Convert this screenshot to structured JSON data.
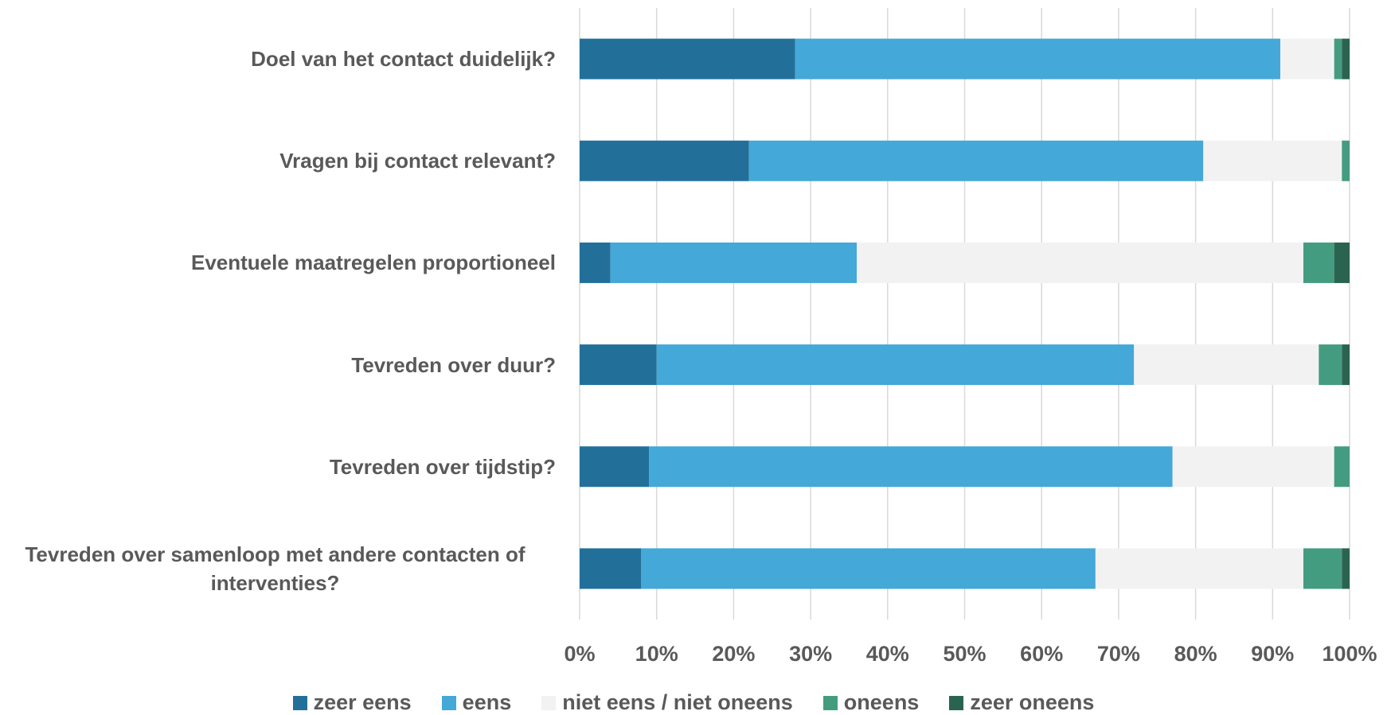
{
  "chart_data": {
    "type": "stacked_barh",
    "categories": [
      "Doel van het contact duidelijk?",
      "Vragen bij contact relevant?",
      "Eventuele maatregelen proportioneel",
      "Tevreden over duur?",
      "Tevreden over tijdstip?",
      "Tevreden over samenloop met andere contacten of interventies?"
    ],
    "series": [
      {
        "name": "zeer eens",
        "color": "#22709a",
        "values": [
          28,
          22,
          4,
          10,
          9,
          8
        ]
      },
      {
        "name": "eens",
        "color": "#44a8d8",
        "values": [
          63,
          59,
          32,
          62,
          68,
          59
        ]
      },
      {
        "name": "niet eens / niet oneens",
        "color": "#f2f2f2",
        "values": [
          7,
          18,
          58,
          24,
          21,
          27
        ]
      },
      {
        "name": "oneens",
        "color": "#449c80",
        "values": [
          1,
          1,
          4,
          3,
          2,
          5
        ]
      },
      {
        "name": "zeer oneens",
        "color": "#2a6450",
        "values": [
          1,
          0,
          2,
          1,
          0,
          1
        ]
      }
    ],
    "xlim": [
      0,
      100
    ],
    "xticks": [
      {
        "value": 0,
        "label": "0%"
      },
      {
        "value": 10,
        "label": "10%"
      },
      {
        "value": 20,
        "label": "20%"
      },
      {
        "value": 30,
        "label": "30%"
      },
      {
        "value": 40,
        "label": "40%"
      },
      {
        "value": 50,
        "label": "50%"
      },
      {
        "value": 60,
        "label": "60%"
      },
      {
        "value": 70,
        "label": "70%"
      },
      {
        "value": 80,
        "label": "80%"
      },
      {
        "value": 90,
        "label": "90%"
      },
      {
        "value": 100,
        "label": "100%"
      }
    ],
    "grid": true,
    "legend": "bottom"
  }
}
